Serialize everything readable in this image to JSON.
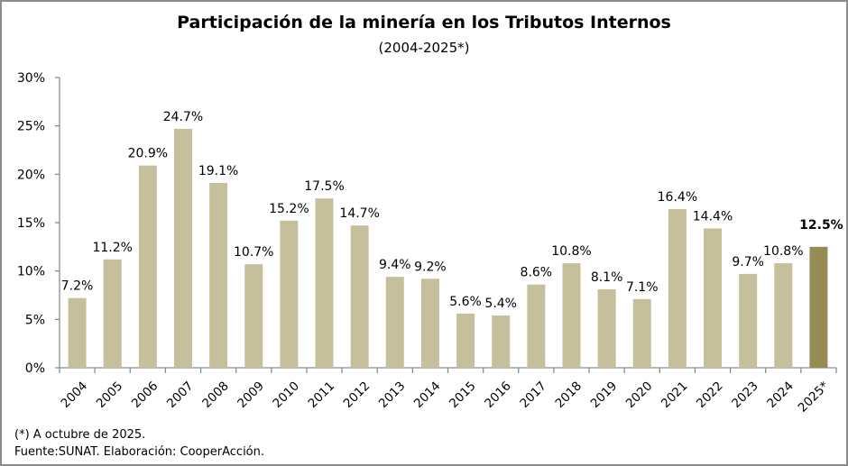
{
  "chart_data": {
    "type": "bar",
    "title": "Participación de la minería en los Tributos Internos",
    "subtitle": "(2004-2025*)",
    "xlabel": "",
    "ylabel": "",
    "ylim": [
      0,
      30
    ],
    "yticks": [
      0,
      5,
      10,
      15,
      20,
      25,
      30
    ],
    "ytick_labels": [
      "0%",
      "5%",
      "10%",
      "15%",
      "20%",
      "25%",
      "30%"
    ],
    "grid": false,
    "legend": "none",
    "categories": [
      "2004",
      "2005",
      "2006",
      "2007",
      "2008",
      "2009",
      "2010",
      "2011",
      "2012",
      "2013",
      "2014",
      "2015",
      "2016",
      "2017",
      "2018",
      "2019",
      "2020",
      "2021",
      "2022",
      "2023",
      "2024",
      "2025*"
    ],
    "values": [
      7.2,
      11.2,
      20.9,
      24.7,
      19.1,
      10.7,
      15.2,
      17.5,
      14.7,
      9.4,
      9.2,
      5.6,
      5.4,
      8.6,
      10.8,
      8.1,
      7.1,
      16.4,
      14.4,
      9.7,
      10.8,
      12.5
    ],
    "data_labels": [
      "7.2%",
      "11.2%",
      "20.9%",
      "24.7%",
      "19.1%",
      "10.7%",
      "15.2%",
      "17.5%",
      "14.7%",
      "9.4%",
      "9.2%",
      "5.6%",
      "5.4%",
      "8.6%",
      "10.8%",
      "8.1%",
      "7.1%",
      "16.4%",
      "14.4%",
      "9.7%",
      "10.8%",
      "12.5%"
    ],
    "highlight_category": "2025*",
    "colors": {
      "bar": "#c6bf9b",
      "bar_highlight": "#958b55",
      "axis": "#8c8c8c"
    }
  },
  "footnotes": {
    "note": "(*) A octubre de 2025.",
    "source": "Fuente:SUNAT. Elaboración: CooperAcción."
  }
}
